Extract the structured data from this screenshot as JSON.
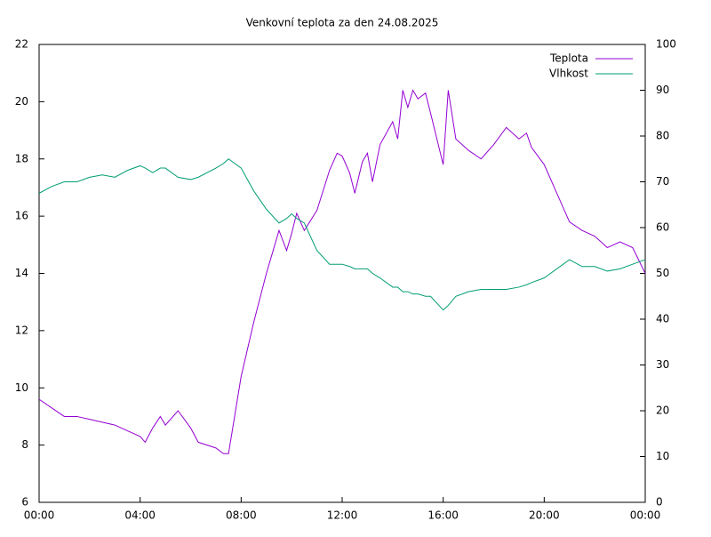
{
  "chart_data": {
    "type": "line",
    "title": "Venkovní teplota za den 24.08.2025",
    "x": [
      0,
      0.5,
      1,
      1.5,
      2,
      2.5,
      3,
      3.5,
      4,
      4.2,
      4.5,
      4.8,
      5,
      5.5,
      6,
      6.3,
      7,
      7.3,
      7.5,
      8,
      8.5,
      9,
      9.5,
      9.8,
      10,
      10.2,
      10.5,
      11,
      11.5,
      11.8,
      12,
      12.3,
      12.5,
      12.8,
      13,
      13.2,
      13.5,
      14,
      14.2,
      14.4,
      14.6,
      14.8,
      15,
      15.3,
      15.5,
      16,
      16.2,
      16.5,
      17,
      17.5,
      18,
      18.5,
      19,
      19.3,
      19.5,
      20,
      21,
      21.5,
      22,
      22.5,
      23,
      23.5,
      24
    ],
    "series": [
      {
        "name": "Teplota",
        "color": "#9400d3",
        "values": [
          9.6,
          9.3,
          9.0,
          9.0,
          8.9,
          8.8,
          8.7,
          8.5,
          8.3,
          8.1,
          8.6,
          9.0,
          8.7,
          9.2,
          8.6,
          8.1,
          7.9,
          7.7,
          7.7,
          10.4,
          12.3,
          14.0,
          15.5,
          14.8,
          15.4,
          16.1,
          15.5,
          16.2,
          17.6,
          18.2,
          18.1,
          17.5,
          16.8,
          17.9,
          18.2,
          17.2,
          18.5,
          19.3,
          18.7,
          20.4,
          19.8,
          20.4,
          20.1,
          20.3,
          19.6,
          17.8,
          20.4,
          18.7,
          18.3,
          18.0,
          18.5,
          19.1,
          18.7,
          18.9,
          18.4,
          17.8,
          15.8,
          15.5,
          15.3,
          14.9,
          15.1,
          14.9,
          14.0
        ]
      },
      {
        "name": "Vlhkost",
        "color": "#009e73",
        "axis": "y2",
        "values": [
          67.5,
          69,
          70,
          70,
          71,
          71.5,
          71,
          72.5,
          73.5,
          73,
          72,
          73,
          73,
          71,
          70.5,
          71,
          73,
          74,
          75,
          73,
          68,
          64,
          61,
          62,
          63,
          62,
          61,
          55,
          52,
          52,
          52,
          51.5,
          51,
          51,
          51,
          50,
          49,
          47,
          47,
          46,
          46,
          45.5,
          45.5,
          45,
          45,
          42,
          43,
          45,
          46,
          46.5,
          46.5,
          46.5,
          47,
          47.5,
          48,
          49,
          53,
          51.5,
          51.5,
          50.5,
          51,
          52,
          53
        ]
      }
    ],
    "xlim": [
      0,
      24
    ],
    "xticks": [
      {
        "value": 0,
        "label": "00:00"
      },
      {
        "value": 4,
        "label": "04:00"
      },
      {
        "value": 8,
        "label": "08:00"
      },
      {
        "value": 12,
        "label": "12:00"
      },
      {
        "value": 16,
        "label": "16:00"
      },
      {
        "value": 20,
        "label": "20:00"
      },
      {
        "value": 24,
        "label": "00:00"
      }
    ],
    "ylim": [
      6,
      22
    ],
    "yticks": [
      6,
      8,
      10,
      12,
      14,
      16,
      18,
      20,
      22
    ],
    "y2lim": [
      0,
      100
    ],
    "y2ticks": [
      0,
      10,
      20,
      30,
      40,
      50,
      60,
      70,
      80,
      90,
      100
    ],
    "legend": "top-right"
  }
}
